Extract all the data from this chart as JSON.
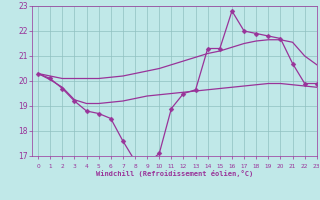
{
  "x": [
    0,
    1,
    2,
    3,
    4,
    5,
    6,
    7,
    8,
    9,
    10,
    11,
    12,
    13,
    14,
    15,
    16,
    17,
    18,
    19,
    20,
    21,
    22,
    23
  ],
  "jagged_y": [
    20.3,
    20.1,
    19.7,
    19.2,
    18.8,
    18.7,
    18.5,
    17.6,
    16.8,
    16.7,
    17.1,
    18.9,
    19.5,
    19.65,
    21.3,
    21.3,
    22.8,
    22.0,
    21.9,
    21.8,
    21.7,
    20.7,
    19.9,
    19.9
  ],
  "upper_y": [
    20.3,
    20.2,
    20.1,
    20.1,
    20.1,
    20.1,
    20.15,
    20.2,
    20.3,
    20.4,
    20.5,
    20.65,
    20.8,
    20.95,
    21.1,
    21.2,
    21.35,
    21.5,
    21.6,
    21.65,
    21.65,
    21.55,
    21.0,
    20.65
  ],
  "lower_y": [
    20.3,
    20.05,
    19.75,
    19.25,
    19.1,
    19.1,
    19.15,
    19.2,
    19.3,
    19.4,
    19.45,
    19.5,
    19.55,
    19.6,
    19.65,
    19.7,
    19.75,
    19.8,
    19.85,
    19.9,
    19.9,
    19.85,
    19.8,
    19.75
  ],
  "ylim": [
    17,
    23
  ],
  "xlim": [
    -0.5,
    23
  ],
  "yticks": [
    17,
    18,
    19,
    20,
    21,
    22,
    23
  ],
  "xtick_labels": [
    "0",
    "1",
    "2",
    "3",
    "4",
    "5",
    "6",
    "7",
    "8",
    "9",
    "10",
    "11",
    "12",
    "13",
    "14",
    "15",
    "16",
    "17",
    "18",
    "19",
    "20",
    "21",
    "22",
    "23"
  ],
  "xlabel": "Windchill (Refroidissement éolien,°C)",
  "bg_color": "#c0e8e8",
  "grid_color": "#90c0c0",
  "line_color": "#993399",
  "marker_size": 2.5,
  "lw": 0.9
}
